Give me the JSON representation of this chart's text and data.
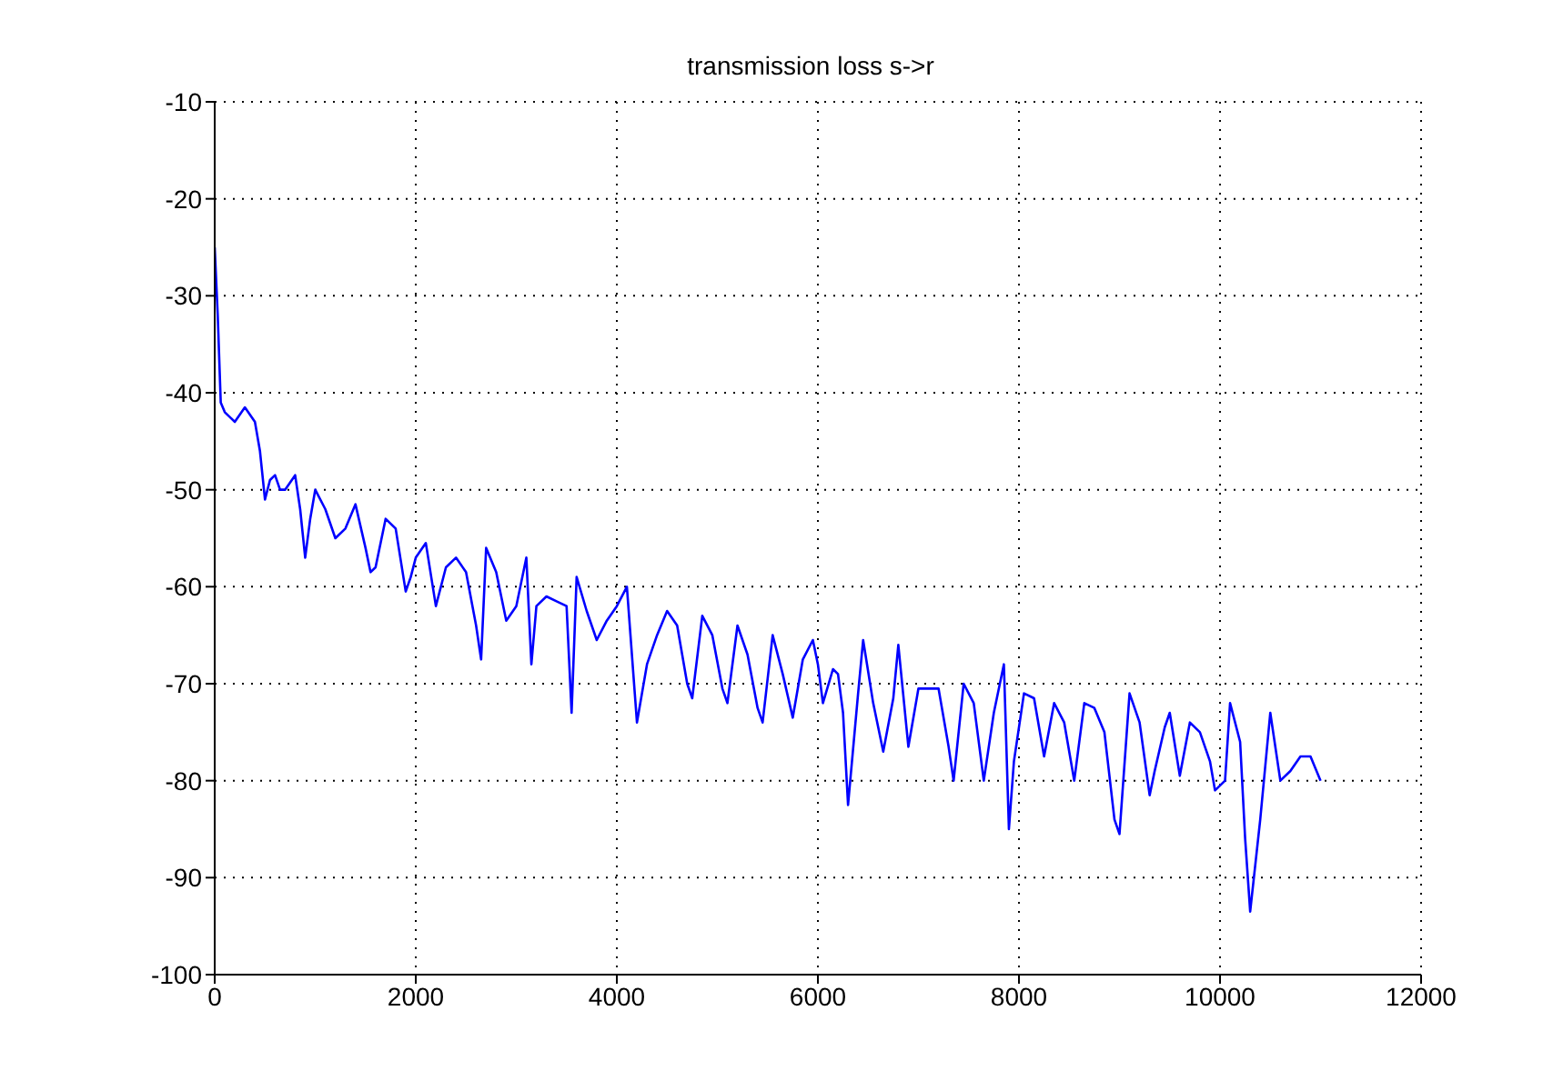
{
  "chart_data": {
    "type": "line",
    "title": "transmission loss s->r",
    "x": [
      0,
      30,
      60,
      100,
      200,
      300,
      400,
      450,
      500,
      550,
      600,
      650,
      700,
      800,
      850,
      900,
      950,
      1000,
      1100,
      1200,
      1300,
      1400,
      1500,
      1550,
      1600,
      1700,
      1800,
      1900,
      1950,
      2000,
      2100,
      2200,
      2300,
      2400,
      2500,
      2600,
      2650,
      2700,
      2800,
      2900,
      3000,
      3100,
      3150,
      3200,
      3300,
      3400,
      3500,
      3550,
      3600,
      3700,
      3800,
      3900,
      4000,
      4100,
      4200,
      4300,
      4400,
      4500,
      4600,
      4700,
      4750,
      4850,
      4950,
      5050,
      5100,
      5200,
      5300,
      5400,
      5450,
      5550,
      5650,
      5750,
      5850,
      5950,
      6000,
      6050,
      6150,
      6200,
      6250,
      6300,
      6400,
      6450,
      6550,
      6650,
      6750,
      6800,
      6900,
      7000,
      7100,
      7200,
      7300,
      7350,
      7450,
      7550,
      7650,
      7750,
      7850,
      7900,
      7950,
      8050,
      8150,
      8250,
      8350,
      8450,
      8550,
      8650,
      8750,
      8850,
      8950,
      9000,
      9100,
      9200,
      9300,
      9350,
      9450,
      9500,
      9600,
      9700,
      9800,
      9900,
      9950,
      10050,
      10100,
      10200,
      10250,
      10300,
      10400,
      10500,
      10600,
      10700,
      10800,
      10900,
      11000
    ],
    "series": [
      {
        "color": "#0000ff",
        "values": [
          -25,
          -32,
          -41,
          -42,
          -43,
          -41.5,
          -43,
          -46,
          -51,
          -49,
          -48.5,
          -50,
          -50,
          -48.5,
          -52,
          -57,
          -53,
          -50,
          -52,
          -55,
          -54,
          -51.5,
          -56,
          -58.5,
          -58,
          -53,
          -54,
          -60.5,
          -59,
          -57,
          -55.5,
          -62,
          -58,
          -57,
          -58.5,
          -64,
          -67.5,
          -56,
          -58.5,
          -63.5,
          -62,
          -57,
          -68,
          -62,
          -61,
          -61.5,
          -62,
          -73,
          -59,
          -62.5,
          -65.5,
          -63.5,
          -62,
          -60,
          -74,
          -68,
          -65,
          -62.5,
          -64,
          -70,
          -71.5,
          -63,
          -65,
          -70.5,
          -72,
          -64,
          -67,
          -72.5,
          -74,
          -65,
          -69,
          -73.5,
          -67.5,
          -65.5,
          -68,
          -72,
          -68.5,
          -69,
          -73,
          -82.5,
          -71,
          -65.5,
          -72,
          -77,
          -71.5,
          -66,
          -76.5,
          -70.5,
          -70.5,
          -70.5,
          -76.5,
          -80,
          -70,
          -72,
          -80,
          -73,
          -68,
          -85,
          -78,
          -71,
          -71.5,
          -77.5,
          -72,
          -74,
          -80,
          -72,
          -72.5,
          -75,
          -84,
          -85.5,
          -71,
          -74,
          -81.5,
          -79,
          -74.5,
          -73,
          -79.5,
          -74,
          -75,
          -78,
          -81,
          -80,
          -72,
          -76,
          -86,
          -93.5,
          -84,
          -73,
          -80,
          -79,
          -77.5,
          -77.5,
          -80
        ]
      }
    ],
    "xlim": [
      0,
      12000
    ],
    "xticks": [
      0,
      2000,
      4000,
      6000,
      8000,
      10000,
      12000
    ],
    "ylim": [
      -100,
      -10
    ],
    "yticks": [
      -100,
      -90,
      -80,
      -70,
      -60,
      -50,
      -40,
      -30,
      -20,
      -10
    ],
    "grid": true,
    "marker": "none",
    "line_style": "solid"
  }
}
